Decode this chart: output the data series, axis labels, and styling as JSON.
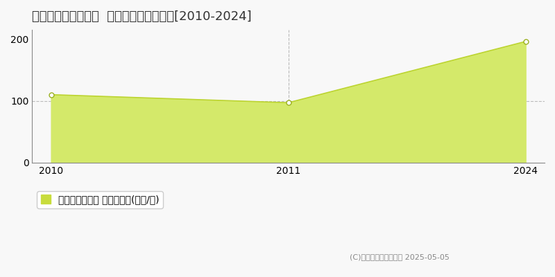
{
  "title": "名古屋市昭和区曙町  マンション価格推移[2010-2024]",
  "years": [
    2010,
    2011,
    2024
  ],
  "x_positions": [
    0,
    1,
    2
  ],
  "values": [
    110,
    97,
    196
  ],
  "fill_color": "#d4e96a",
  "line_color": "#bcd430",
  "marker_color": "#ffffff",
  "marker_edge_color": "#9ab020",
  "bg_color": "#f8f8f8",
  "plot_bg_color": "#f8f8f8",
  "yticks": [
    0,
    100,
    200
  ],
  "ylim": [
    0,
    215
  ],
  "legend_label": "マンション価格 平均嵪単価(万円/嵪)",
  "legend_color": "#c8dc3c",
  "copyright_text": "(C)土地価格ドットコム 2025-05-05",
  "dashed_line_y": 100,
  "dashed_vline_x": 1,
  "title_fontsize": 13,
  "tick_fontsize": 10,
  "legend_fontsize": 10
}
